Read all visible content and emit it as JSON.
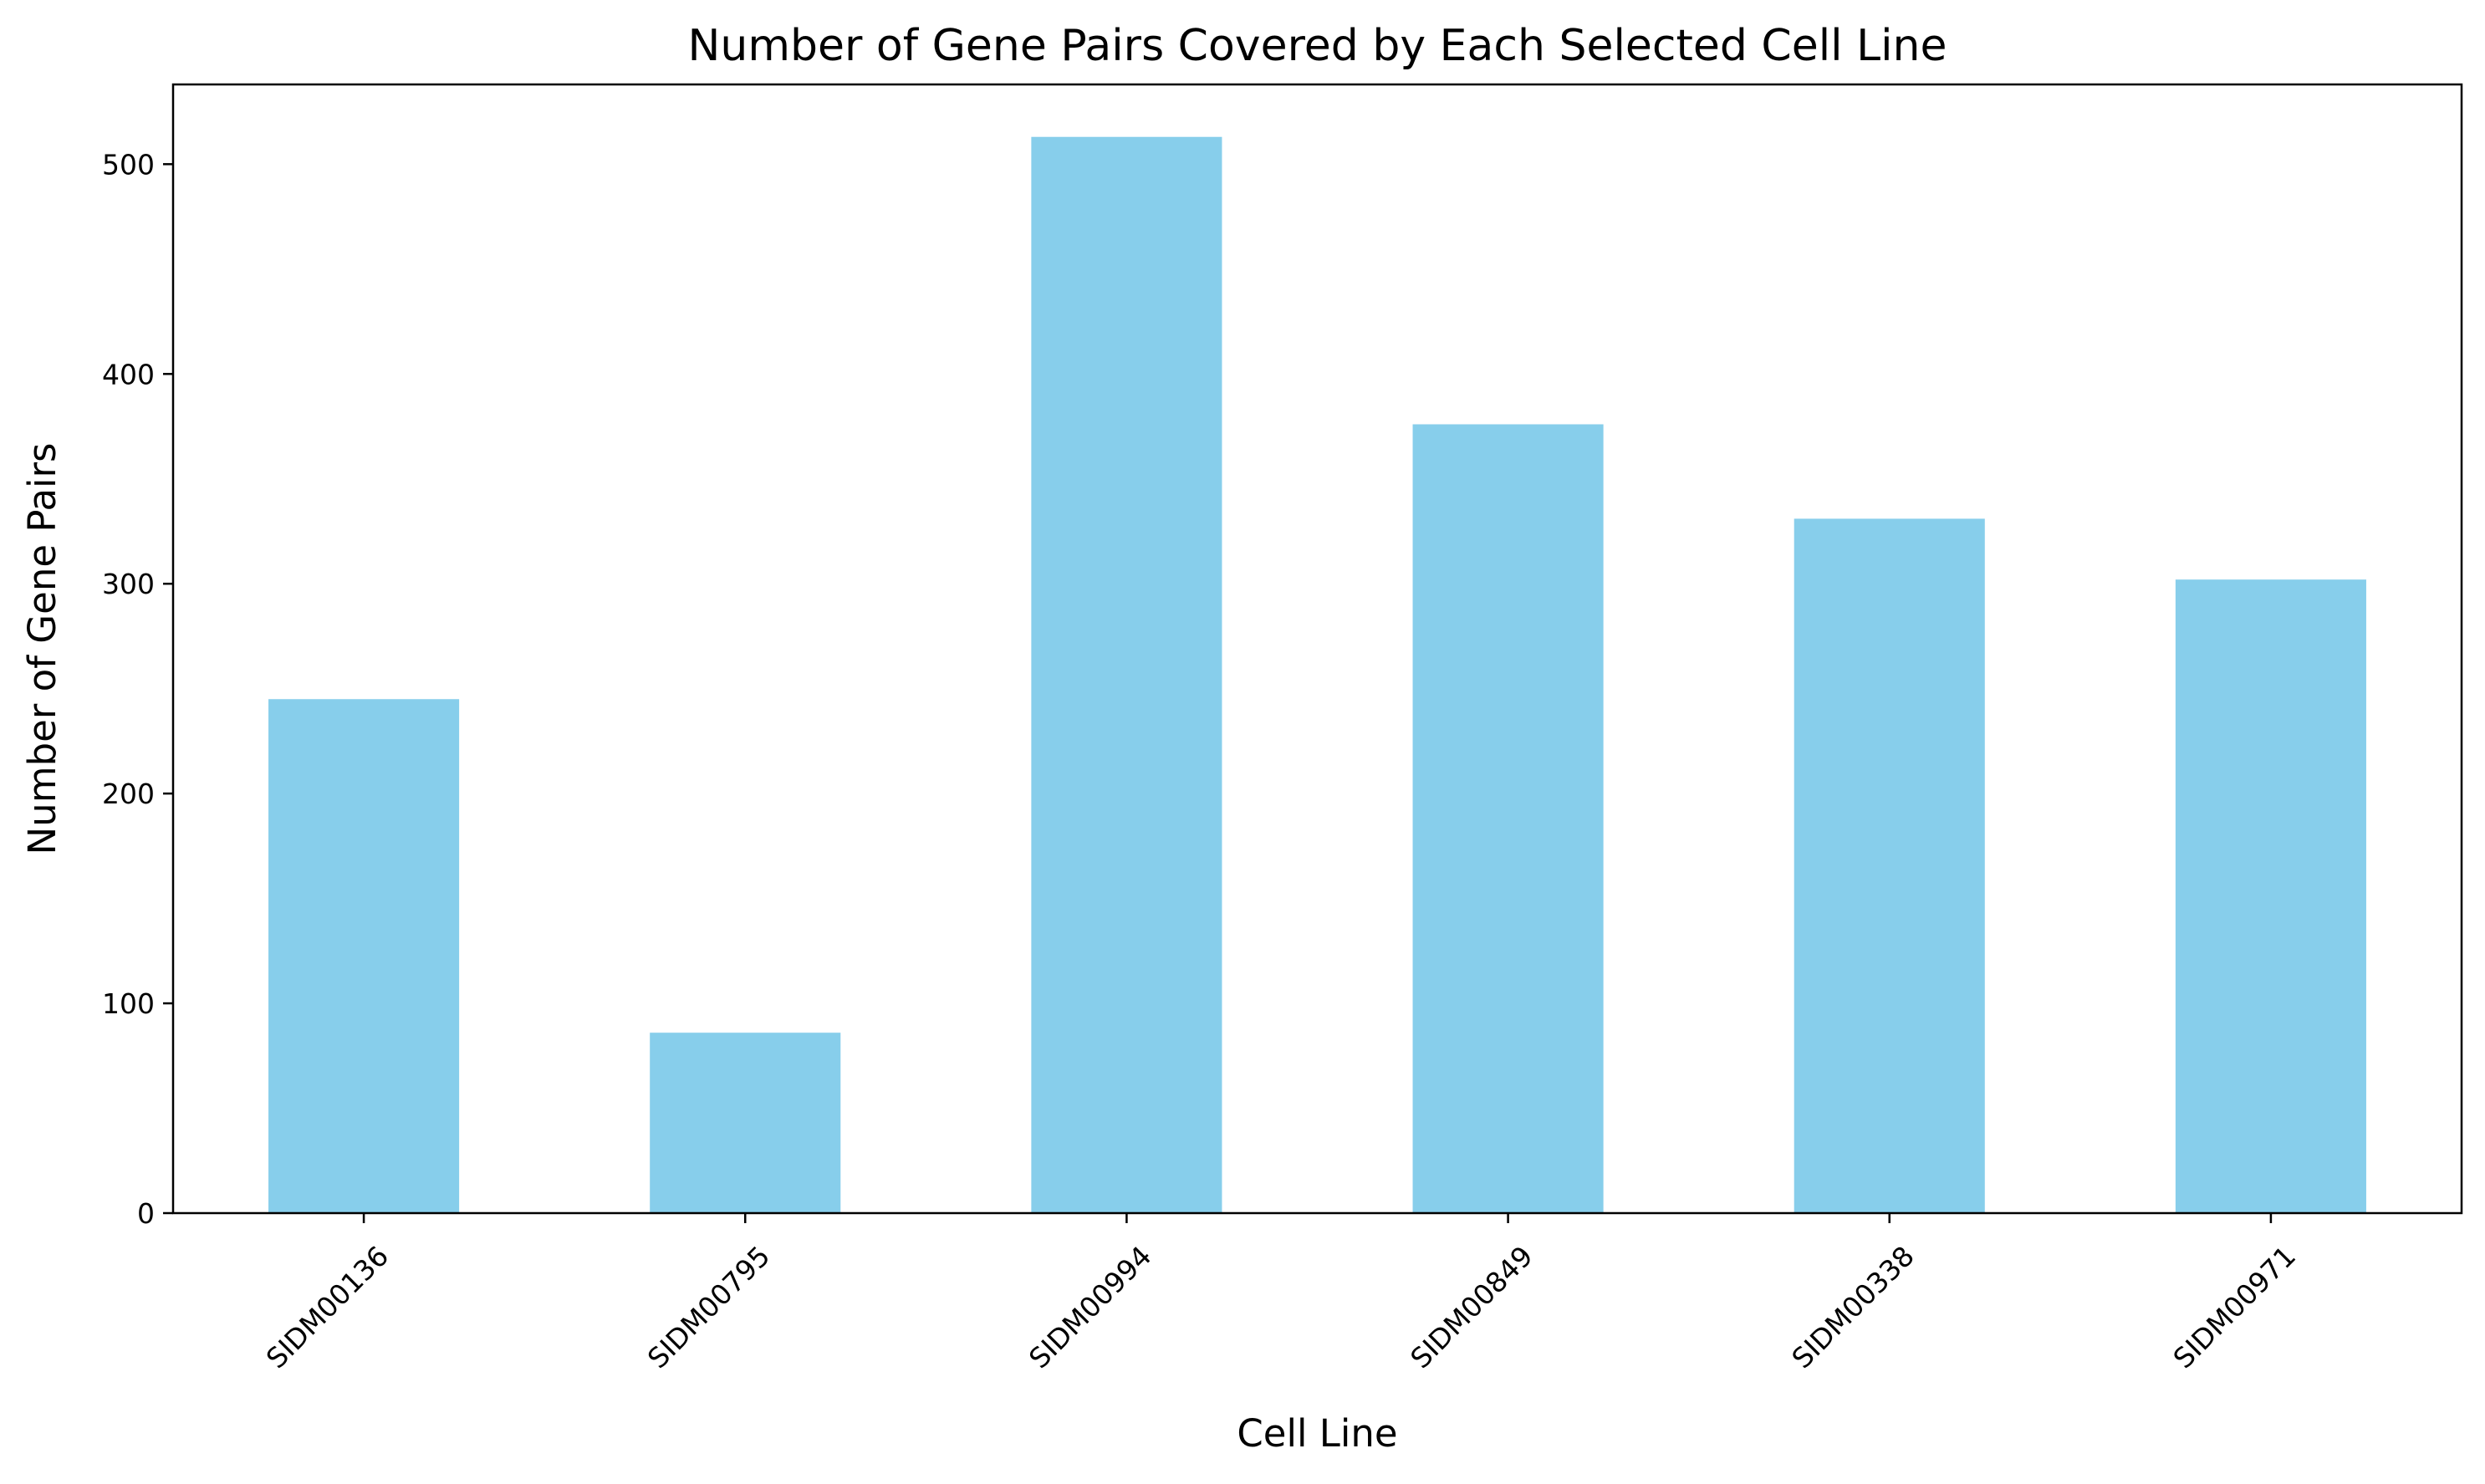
{
  "chart_data": {
    "type": "bar",
    "title": "Number of Gene Pairs Covered by Each Selected Cell Line",
    "xlabel": "Cell Line",
    "ylabel": "Number of Gene Pairs",
    "categories": [
      "SIDM00136",
      "SIDM00795",
      "SIDM00994",
      "SIDM00849",
      "SIDM00338",
      "SIDM00971"
    ],
    "values": [
      245,
      86,
      513,
      376,
      331,
      302
    ],
    "ylim": [
      0,
      538
    ],
    "yticks": [
      0,
      100,
      200,
      300,
      400,
      500
    ],
    "ytick_labels": [
      "0",
      "100",
      "200",
      "300",
      "400",
      "500"
    ],
    "bar_color": "#87CEEB",
    "grid": false,
    "legend": "none",
    "xtick_rotation": "45"
  }
}
